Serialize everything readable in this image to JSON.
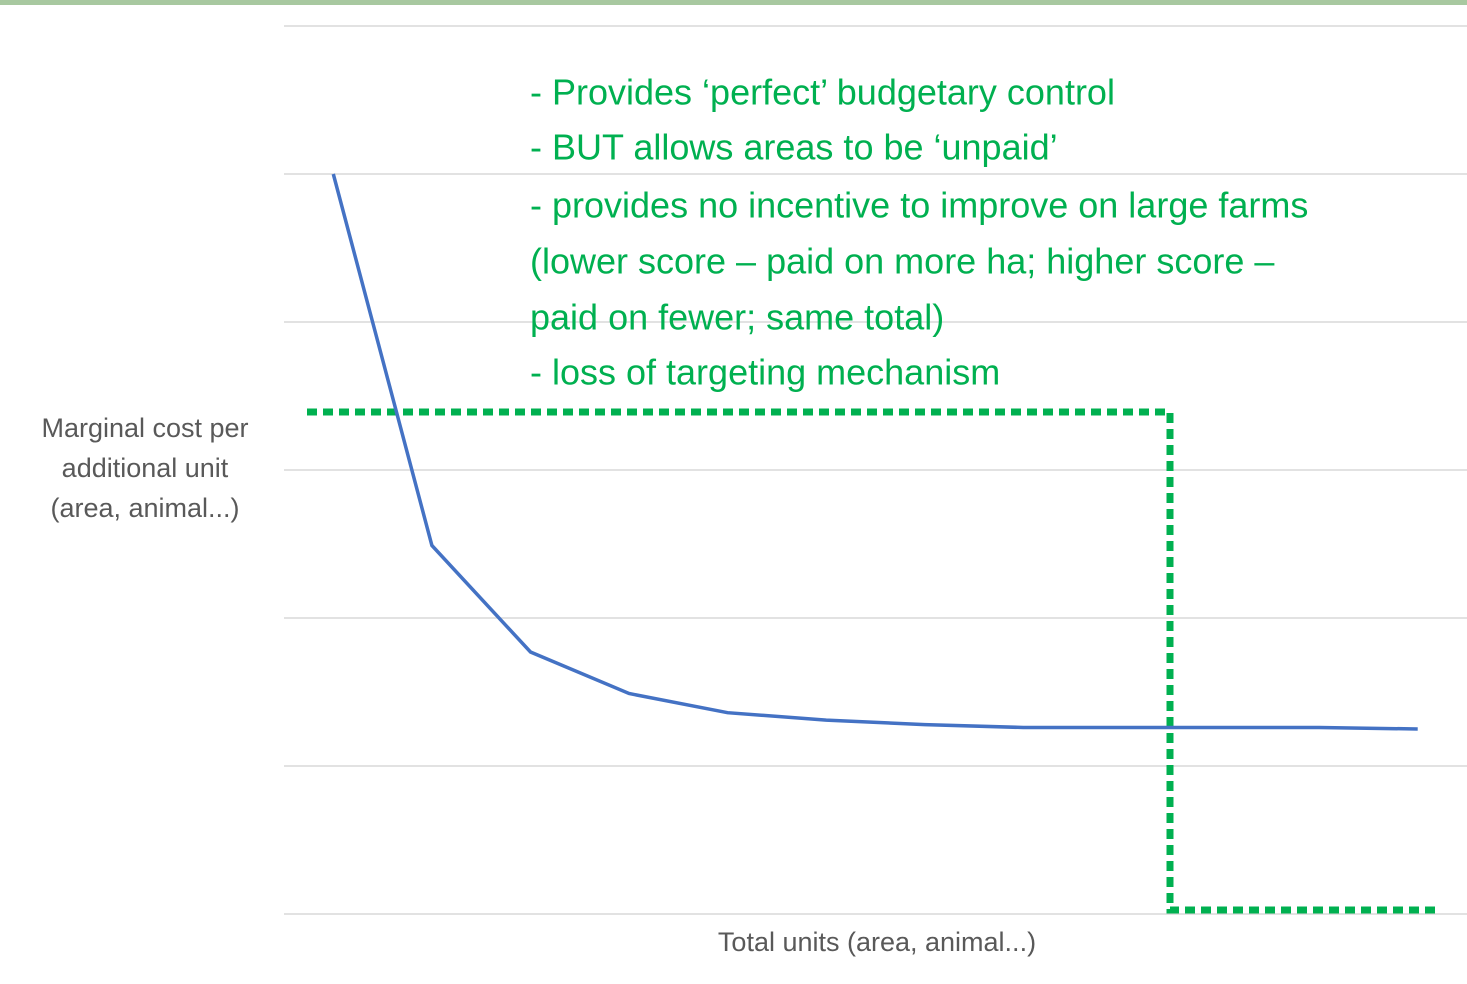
{
  "chart_data": {
    "type": "line",
    "annotations": [
      "- Provides ‘perfect’ budgetary control",
      "- BUT allows areas to be ‘unpaid’",
      "- provides no incentive to improve on large farms",
      "(lower score – paid on more ha; higher score –",
      "paid on fewer; same total)",
      "- loss of targeting mechanism"
    ],
    "ylabel": [
      "Marginal cost per",
      "additional unit",
      "(area, animal...)"
    ],
    "xlabel": "Total units (area, animal...)",
    "categories": [
      null,
      null,
      null,
      null,
      null,
      null,
      null,
      null,
      null,
      null,
      null,
      null
    ],
    "series": [
      {
        "color": "#4472c4",
        "values": [
          5,
          2.49,
          1.77,
          1.49,
          1.36,
          1.31,
          1.28,
          1.26,
          1.26,
          1.26,
          1.26,
          1.25
        ]
      }
    ],
    "ylim": [
      0,
      6
    ],
    "yticks": [
      0,
      1,
      2,
      3,
      4,
      5,
      6
    ],
    "grid": true
  }
}
